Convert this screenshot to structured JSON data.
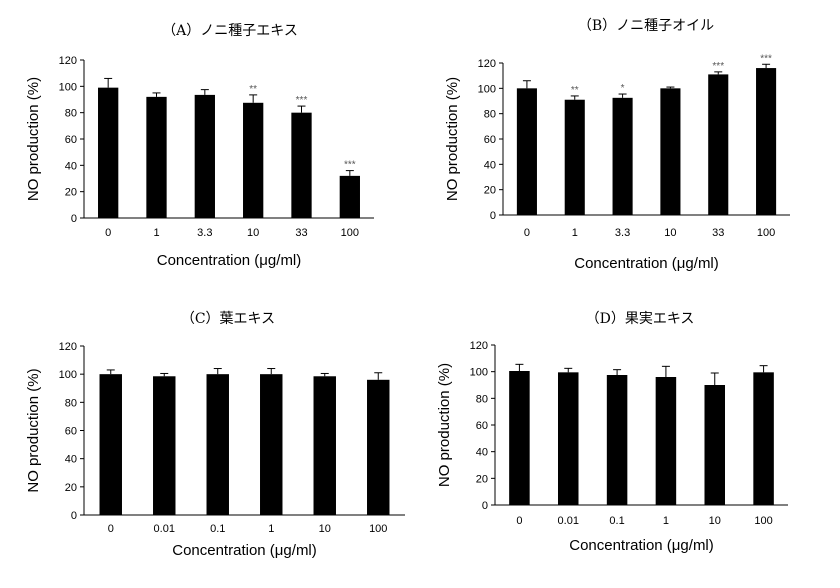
{
  "chart_data": [
    {
      "type": "bar",
      "title": "（A）ノニ種子エキス",
      "xlabel": "Concentration (μg/ml)",
      "ylabel": "NO production (%)",
      "ylim": [
        0,
        120
      ],
      "yticks": [
        "0",
        "20",
        "40",
        "60",
        "80",
        "100",
        "120"
      ],
      "categories": [
        "0",
        "1",
        "3.3",
        "10",
        "33",
        "100"
      ],
      "values": [
        99,
        92,
        93.5,
        87.5,
        80,
        32
      ],
      "errors": [
        7,
        3,
        4,
        6,
        5,
        4
      ],
      "significance": [
        "",
        "",
        "",
        "**",
        "***",
        "***"
      ],
      "colors": {
        "bar": "#000000"
      }
    },
    {
      "type": "bar",
      "title": "（B）ノニ種子オイル",
      "xlabel": "Concentration (μg/ml)",
      "ylabel": "NO production (%)",
      "ylim": [
        0,
        120
      ],
      "yticks": [
        "0",
        "20",
        "40",
        "60",
        "80",
        "100",
        "120"
      ],
      "categories": [
        "0",
        "1",
        "3.3",
        "10",
        "33",
        "100"
      ],
      "values": [
        100,
        91,
        92.5,
        100,
        111,
        116
      ],
      "errors": [
        6,
        3,
        3,
        1,
        2,
        3
      ],
      "significance": [
        "",
        "**",
        "*",
        "",
        "***",
        "***"
      ],
      "colors": {
        "bar": "#000000"
      }
    },
    {
      "type": "bar",
      "title": "（C）葉エキス",
      "xlabel": "Concentration (μg/ml)",
      "ylabel": "NO production (%)",
      "ylim": [
        0,
        120
      ],
      "yticks": [
        "0",
        "20",
        "40",
        "60",
        "80",
        "100",
        "120"
      ],
      "categories": [
        "0",
        "0.01",
        "0.1",
        "1",
        "10",
        "100"
      ],
      "values": [
        100,
        98.5,
        100,
        100,
        98.5,
        96
      ],
      "errors": [
        3,
        2,
        4,
        4,
        2,
        5
      ],
      "significance": [
        "",
        "",
        "",
        "",
        "",
        ""
      ],
      "colors": {
        "bar": "#000000"
      }
    },
    {
      "type": "bar",
      "title": "（D）果実エキス",
      "xlabel": "Concentration (μg/ml)",
      "ylabel": "NO production (%)",
      "ylim": [
        0,
        120
      ],
      "yticks": [
        "0",
        "20",
        "40",
        "60",
        "80",
        "100",
        "120"
      ],
      "categories": [
        "0",
        "0.01",
        "0.1",
        "1",
        "10",
        "100"
      ],
      "values": [
        100.5,
        99.5,
        97.5,
        96,
        90,
        99.5
      ],
      "errors": [
        5,
        3,
        4,
        8,
        9,
        5
      ],
      "significance": [
        "",
        "",
        "",
        "",
        "",
        ""
      ],
      "colors": {
        "bar": "#000000"
      }
    }
  ]
}
